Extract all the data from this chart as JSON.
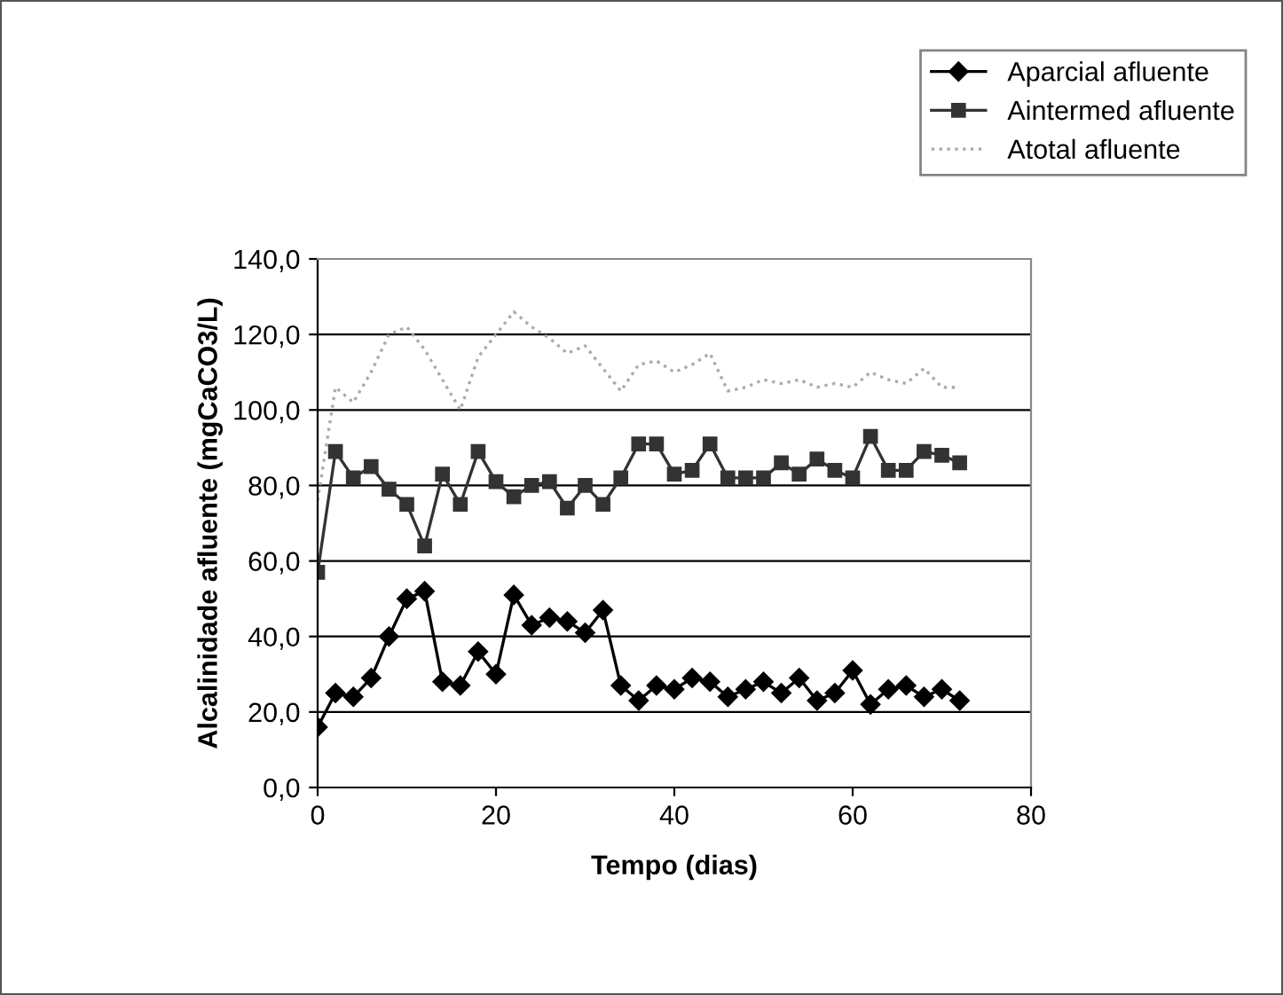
{
  "chart_data": {
    "type": "line",
    "xlabel": "Tempo (dias)",
    "ylabel": "Alcalinidade afluente (mgCaCO3/L)",
    "x": [
      0,
      2,
      4,
      6,
      8,
      10,
      12,
      14,
      16,
      18,
      20,
      22,
      24,
      26,
      28,
      30,
      32,
      34,
      36,
      38,
      40,
      42,
      44,
      46,
      48,
      50,
      52,
      54,
      56,
      58,
      60,
      62,
      64,
      66,
      68,
      70,
      72
    ],
    "series": [
      {
        "name": "Aparcial afluente",
        "color": "#000000",
        "marker": "diamond",
        "line_style": "solid",
        "values": [
          16,
          25,
          24,
          29,
          40,
          50,
          52,
          28,
          27,
          36,
          30,
          51,
          43,
          45,
          44,
          41,
          47,
          27,
          23,
          27,
          26,
          29,
          28,
          24,
          26,
          28,
          25,
          29,
          23,
          25,
          31,
          22,
          26,
          27,
          24,
          26,
          23
        ]
      },
      {
        "name": "Aintermed afluente",
        "color": "#333333",
        "marker": "square",
        "line_style": "solid",
        "values": [
          57,
          89,
          82,
          85,
          79,
          75,
          64,
          83,
          75,
          89,
          81,
          77,
          80,
          81,
          74,
          80,
          75,
          82,
          91,
          91,
          83,
          84,
          91,
          82,
          82,
          82,
          86,
          83,
          87,
          84,
          82,
          93,
          84,
          84,
          89,
          88,
          86
        ]
      },
      {
        "name": "Atotal afluente",
        "color": "#aaaaaa",
        "marker": "none",
        "line_style": "dotted",
        "values": [
          76,
          106,
          102,
          110,
          120,
          122,
          116,
          108,
          100,
          114,
          120,
          126,
          122,
          119,
          115,
          117,
          111,
          105,
          112,
          113,
          110,
          112,
          115,
          105,
          106,
          108,
          107,
          108,
          106,
          107,
          106,
          110,
          108,
          107,
          111,
          106,
          106
        ]
      }
    ],
    "xlim": [
      0,
      80
    ],
    "xticks": [
      0,
      20,
      40,
      60,
      80
    ],
    "ylim": [
      0,
      140
    ],
    "yticks": [
      {
        "value": 0,
        "label": "0,0"
      },
      {
        "value": 20,
        "label": "20,0"
      },
      {
        "value": 40,
        "label": "40,0"
      },
      {
        "value": 60,
        "label": "60,0"
      },
      {
        "value": 80,
        "label": "80,0"
      },
      {
        "value": 100,
        "label": "100,0"
      },
      {
        "value": 120,
        "label": "120,0"
      },
      {
        "value": 140,
        "label": "140,0"
      }
    ],
    "grid": "y",
    "legend": "top right"
  }
}
